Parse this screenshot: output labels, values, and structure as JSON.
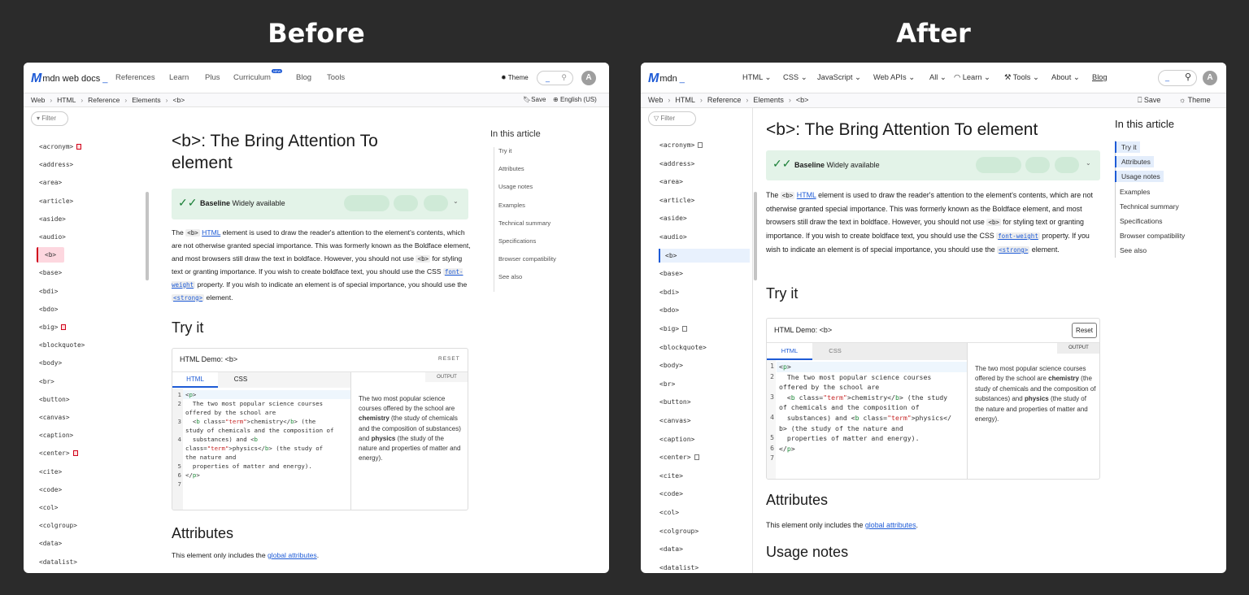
{
  "captions": {
    "before": "Before",
    "after": "After"
  },
  "before": {
    "logo": "mdn web docs",
    "nav": [
      "References",
      "Learn",
      "Plus",
      "Curriculum",
      "Blog",
      "Tools"
    ],
    "new_badge": "NEW",
    "theme": "Theme",
    "avatar": "A",
    "breadcrumb": [
      "Web",
      "HTML",
      "Reference",
      "Elements",
      "<b>"
    ],
    "save": "Save",
    "language": "English (US)",
    "filter_placeholder": "Filter",
    "sidebar": [
      "<acronym>",
      "<address>",
      "<area>",
      "<article>",
      "<aside>",
      "<audio>",
      "<b>",
      "<base>",
      "<bdi>",
      "<bdo>",
      "<big>",
      "<blockquote>",
      "<body>",
      "<br>",
      "<button>",
      "<canvas>",
      "<caption>",
      "<center>",
      "<cite>",
      "<code>",
      "<col>",
      "<colgroup>",
      "<data>",
      "<datalist>"
    ],
    "deprecated": [
      "<acronym>",
      "<big>",
      "<center>"
    ],
    "active": "<b>",
    "title": "<b>: The Bring Attention To element",
    "baseline_bold": "Baseline",
    "baseline_text": "Widely available",
    "try_it": "Try it",
    "demo_title": "HTML Demo: <b>",
    "reset": "RESET",
    "tabs": [
      "HTML",
      "CSS"
    ],
    "output_label": "OUTPUT",
    "attributes_heading": "Attributes",
    "attributes_text_pre": "This element only includes the ",
    "attributes_link": "global attributes",
    "toc_title": "In this article",
    "toc": [
      "Try it",
      "Attributes",
      "Usage notes",
      "Examples",
      "Technical summary",
      "Specifications",
      "Browser compatibility",
      "See also"
    ]
  },
  "after": {
    "logo": "mdn",
    "nav": [
      "HTML",
      "CSS",
      "JavaScript",
      "Web APIs",
      "All",
      "Learn",
      "Tools",
      "About",
      "Blog"
    ],
    "avatar": "A",
    "breadcrumb": [
      "Web",
      "HTML",
      "Reference",
      "Elements",
      "<b>"
    ],
    "save": "Save",
    "theme": "Theme",
    "filter_placeholder": "Filter",
    "sidebar": [
      "<acronym>",
      "<address>",
      "<area>",
      "<article>",
      "<aside>",
      "<audio>",
      "<b>",
      "<base>",
      "<bdi>",
      "<bdo>",
      "<big>",
      "<blockquote>",
      "<body>",
      "<br>",
      "<button>",
      "<canvas>",
      "<caption>",
      "<center>",
      "<cite>",
      "<code>",
      "<col>",
      "<colgroup>",
      "<data>",
      "<datalist>"
    ],
    "deprecated": [
      "<acronym>",
      "<big>",
      "<center>"
    ],
    "active": "<b>",
    "title": "<b>: The Bring Attention To element",
    "baseline_bold": "Baseline",
    "baseline_text": "Widely available",
    "try_it": "Try it",
    "demo_title": "HTML Demo: <b>",
    "reset": "Reset",
    "tabs": [
      "HTML",
      "CSS"
    ],
    "output_label": "OUTPUT",
    "attributes_heading": "Attributes",
    "attributes_text_pre": "This element only includes the ",
    "attributes_link": "global attributes",
    "usage_heading": "Usage notes",
    "toc_title": "In this article",
    "toc": [
      "Try it",
      "Attributes",
      "Usage notes",
      "Examples",
      "Technical summary",
      "Specifications",
      "Browser compatibility",
      "See also"
    ],
    "toc_highlighted": [
      "Try it",
      "Attributes",
      "Usage notes"
    ]
  },
  "intro": [
    {
      "t": "The "
    },
    {
      "t": "<b>",
      "k": "code"
    },
    {
      "t": " "
    },
    {
      "t": "HTML",
      "k": "link"
    },
    {
      "t": " element is used to draw the reader's attention to the element's contents, which are not otherwise granted special importance. This was formerly known as the Boldface element, and most browsers still draw the text in boldface. However, you should not use "
    },
    {
      "t": "<b>",
      "k": "code"
    },
    {
      "t": " for styling text or granting importance. If you wish to create boldface text, you should use the CSS "
    },
    {
      "t": "font-weight",
      "k": "codelink"
    },
    {
      "t": " property. If you wish to indicate an element is of special importance, you should use the "
    },
    {
      "t": "<strong>",
      "k": "codelink"
    },
    {
      "t": " element."
    }
  ],
  "code_before": [
    {
      "n": "1",
      "l": "<p>"
    },
    {
      "n": "2",
      "l": "  The two most popular science courses"
    },
    {
      "n": "",
      "l": "offered by the school are"
    },
    {
      "n": "3",
      "l": "  <b class=\"term\">chemistry</b> (the"
    },
    {
      "n": "",
      "l": "study of chemicals and the composition of"
    },
    {
      "n": "4",
      "l": "  substances) and <b"
    },
    {
      "n": "",
      "l": "class=\"term\">physics</b> (the study of"
    },
    {
      "n": "",
      "l": "the nature and"
    },
    {
      "n": "5",
      "l": "  properties of matter and energy)."
    },
    {
      "n": "6",
      "l": "</p>"
    },
    {
      "n": "7",
      "l": ""
    }
  ],
  "code_after": [
    {
      "n": "1",
      "l": "<p>"
    },
    {
      "n": "2",
      "l": "  The two most popular science courses"
    },
    {
      "n": "",
      "l": "offered by the school are"
    },
    {
      "n": "3",
      "l": "  <b class=\"term\">chemistry</b> (the study"
    },
    {
      "n": "",
      "l": "of chemicals and the composition of"
    },
    {
      "n": "4",
      "l": "  substances) and <b class=\"term\">physics</"
    },
    {
      "n": "",
      "l": "b> (the study of the nature and"
    },
    {
      "n": "5",
      "l": "  properties of matter and energy)."
    },
    {
      "n": "6",
      "l": "</p>"
    },
    {
      "n": "7",
      "l": ""
    }
  ],
  "output": [
    {
      "t": "The two most popular science courses offered by the school are "
    },
    {
      "t": "chemistry",
      "k": "b"
    },
    {
      "t": " (the study of chemicals and the composition of substances) and "
    },
    {
      "t": "physics",
      "k": "b"
    },
    {
      "t": " (the study of the nature and properties of matter and energy)."
    }
  ],
  "colors": {
    "background": "#2b2b2b",
    "link": "#1e5bd6",
    "baseline_bg": "#e3f3e8",
    "active_before": "#fdd7df",
    "active_after": "#e8f1fd",
    "deprecated": "#d0021b"
  }
}
